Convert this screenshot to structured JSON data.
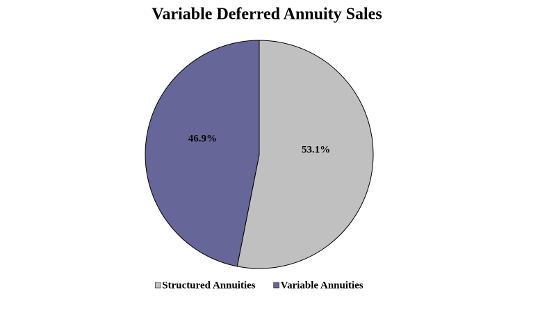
{
  "chart_data": {
    "type": "pie",
    "title": "Variable Deferred Annuity Sales",
    "categories": [
      "Structured Annuities",
      "Variable Annuities"
    ],
    "values": [
      53.1,
      46.9
    ],
    "value_labels": [
      "53.1%",
      "46.9%"
    ],
    "colors": [
      "#c0c0c0",
      "#666699"
    ],
    "legend": "bottom"
  }
}
